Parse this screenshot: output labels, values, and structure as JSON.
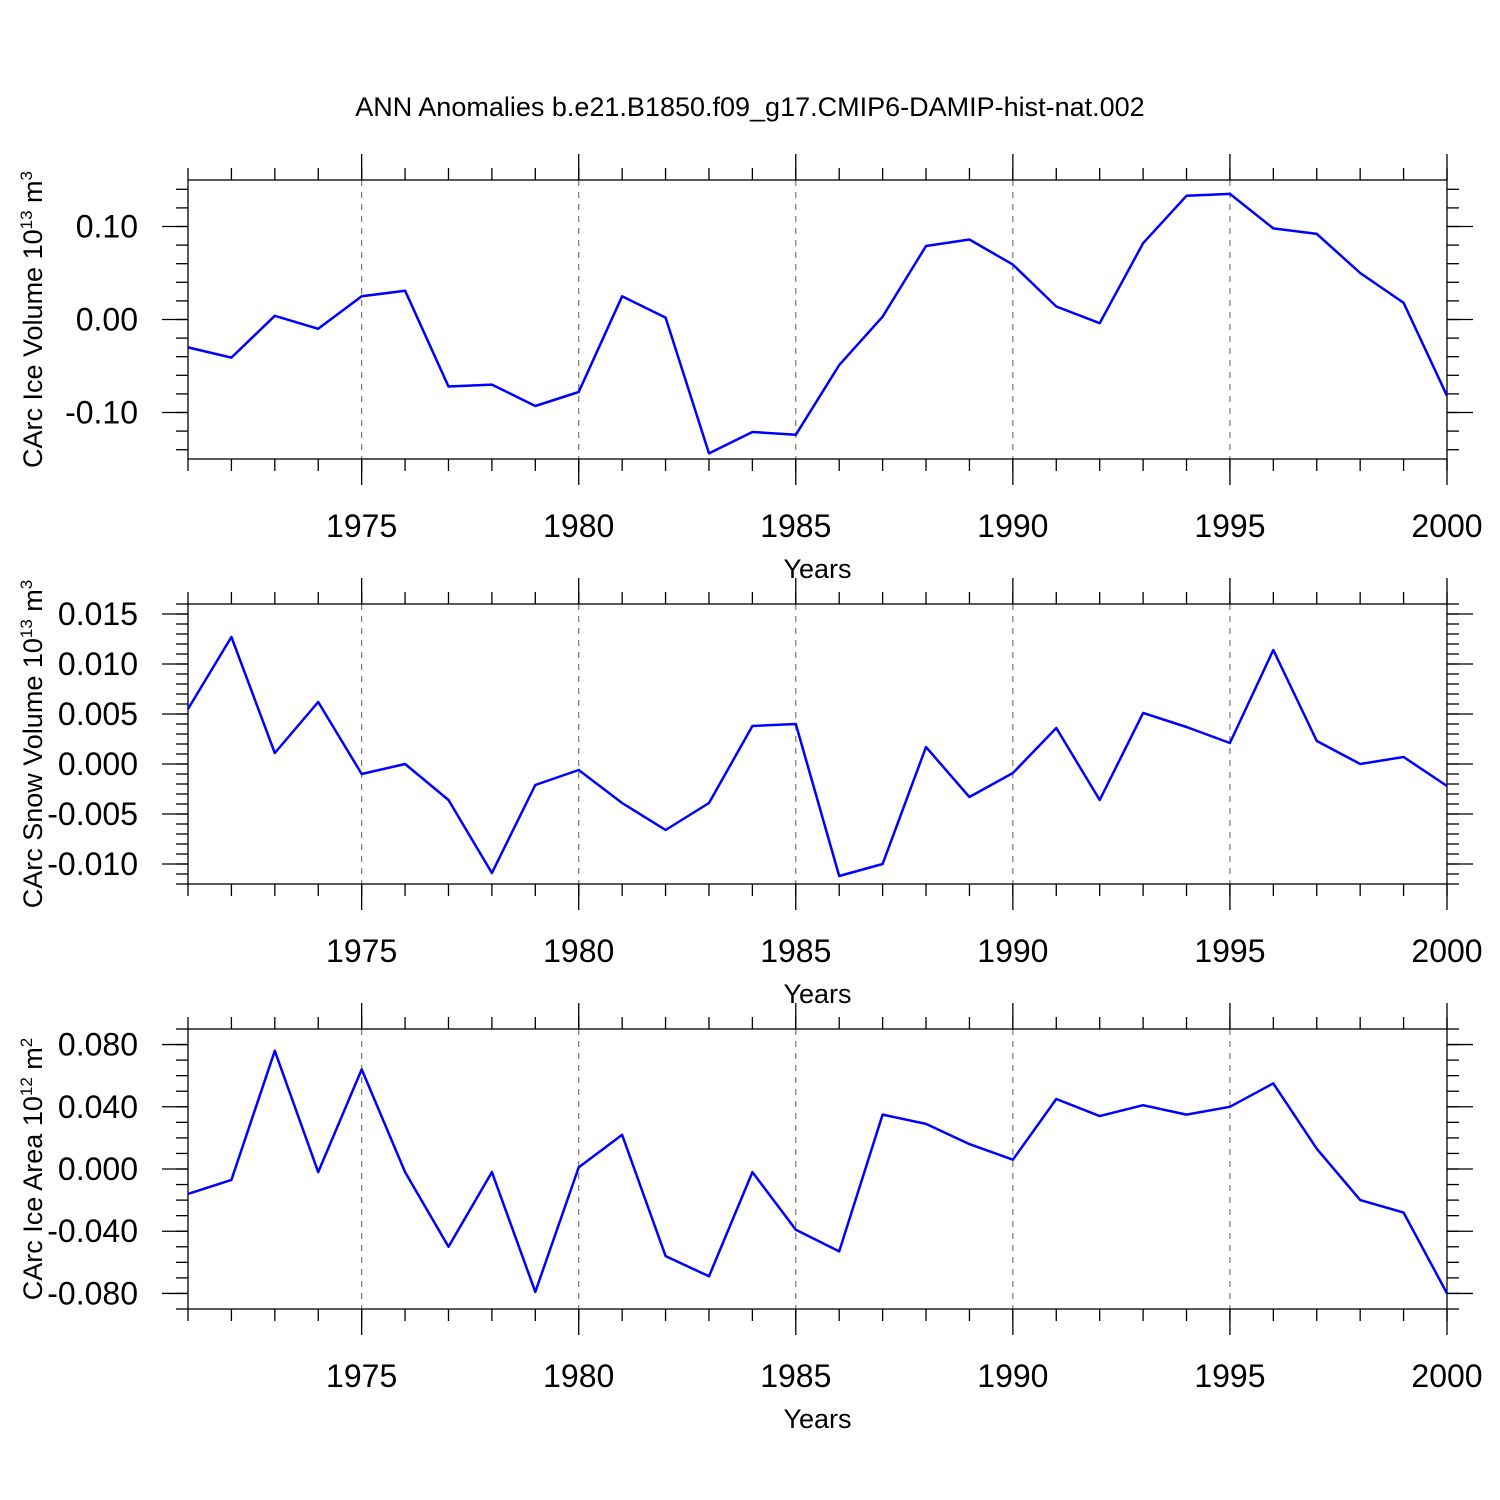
{
  "figure": {
    "title": "ANN Anomalies b.e21.B1850.f09_g17.CMIP6-DAMIP-hist-nat.002"
  },
  "chart_data": [
    {
      "type": "line",
      "title": "ANN Anomalies b.e21.B1850.f09_g17.CMIP6-DAMIP-hist-nat.002",
      "xlabel": "Years",
      "ylabel": "CArc Ice Volume 10^13 m^3",
      "ylabel_parts": [
        "CArc Ice Volume 10",
        "13",
        " m",
        "3"
      ],
      "xlim": [
        1971,
        2000
      ],
      "ylim": [
        -0.15,
        0.15
      ],
      "x_ticks": [
        1975,
        1980,
        1985,
        1990,
        1995,
        2000
      ],
      "y_ticks": [
        -0.1,
        0.0,
        0.1
      ],
      "y_tick_labels": [
        "-0.10",
        "0.00",
        "0.10"
      ],
      "x_minor_step": 1,
      "y_minor_step": 0.02,
      "grid": "vertical dashed at major x ticks",
      "line_color": "#0000ff",
      "x": [
        1971,
        1972,
        1973,
        1974,
        1975,
        1976,
        1977,
        1978,
        1979,
        1980,
        1981,
        1982,
        1983,
        1984,
        1985,
        1986,
        1987,
        1988,
        1989,
        1990,
        1991,
        1992,
        1993,
        1994,
        1995,
        1996,
        1997,
        1998,
        1999,
        2000
      ],
      "values": [
        -0.03,
        -0.041,
        0.004,
        -0.01,
        0.025,
        0.031,
        -0.072,
        -0.07,
        -0.093,
        -0.078,
        0.025,
        0.002,
        -0.144,
        -0.121,
        -0.124,
        -0.049,
        0.003,
        0.079,
        0.086,
        0.059,
        0.014,
        -0.004,
        0.082,
        0.133,
        0.135,
        0.098,
        0.092,
        0.05,
        0.018,
        -0.082
      ]
    },
    {
      "type": "line",
      "xlabel": "Years",
      "ylabel": "CArc Snow Volume 10^13 m^3",
      "ylabel_parts": [
        "CArc Snow Volume 10",
        "13",
        " m",
        "3"
      ],
      "xlim": [
        1971,
        2000
      ],
      "ylim": [
        -0.012,
        0.016
      ],
      "x_ticks": [
        1975,
        1980,
        1985,
        1990,
        1995,
        2000
      ],
      "y_ticks": [
        -0.01,
        -0.005,
        0.0,
        0.005,
        0.01,
        0.015
      ],
      "y_tick_labels": [
        "-0.010",
        "-0.005",
        "0.000",
        "0.005",
        "0.010",
        "0.015"
      ],
      "x_minor_step": 1,
      "y_minor_step": 0.001,
      "grid": "vertical dashed at major x ticks",
      "line_color": "#0000ff",
      "x": [
        1971,
        1972,
        1973,
        1974,
        1975,
        1976,
        1977,
        1978,
        1979,
        1980,
        1981,
        1982,
        1983,
        1984,
        1985,
        1986,
        1987,
        1988,
        1989,
        1990,
        1991,
        1992,
        1993,
        1994,
        1995,
        1996,
        1997,
        1998,
        1999,
        2000
      ],
      "values": [
        0.0055,
        0.0127,
        0.0011,
        0.0062,
        -0.001,
        0.0,
        -0.0036,
        -0.0109,
        -0.0021,
        -0.0006,
        -0.0039,
        -0.0066,
        -0.0039,
        0.0038,
        0.004,
        -0.0112,
        -0.01,
        0.0017,
        -0.0033,
        -0.0009,
        0.0036,
        -0.0036,
        0.0051,
        0.0037,
        0.0021,
        0.0114,
        0.0023,
        0.0,
        0.0007,
        -0.0022
      ]
    },
    {
      "type": "line",
      "xlabel": "Years",
      "ylabel": "CArc Ice Area 10^12 m^2",
      "ylabel_parts": [
        "CArc Ice Area 10",
        "12",
        " m",
        "2"
      ],
      "xlim": [
        1971,
        2000
      ],
      "ylim": [
        -0.09,
        0.09
      ],
      "x_ticks": [
        1975,
        1980,
        1985,
        1990,
        1995,
        2000
      ],
      "y_ticks": [
        -0.08,
        -0.04,
        0.0,
        0.04,
        0.08
      ],
      "y_tick_labels": [
        "-0.080",
        "-0.040",
        "0.000",
        "0.040",
        "0.080"
      ],
      "x_minor_step": 1,
      "y_minor_step": 0.01,
      "grid": "vertical dashed at major x ticks",
      "line_color": "#0000ff",
      "x": [
        1971,
        1972,
        1973,
        1974,
        1975,
        1976,
        1977,
        1978,
        1979,
        1980,
        1981,
        1982,
        1983,
        1984,
        1985,
        1986,
        1987,
        1988,
        1989,
        1990,
        1991,
        1992,
        1993,
        1994,
        1995,
        1996,
        1997,
        1998,
        1999,
        2000
      ],
      "values": [
        -0.016,
        -0.007,
        0.076,
        -0.002,
        0.064,
        -0.002,
        -0.05,
        -0.002,
        -0.079,
        0.001,
        0.022,
        -0.056,
        -0.069,
        -0.002,
        -0.039,
        -0.053,
        0.035,
        0.029,
        0.016,
        0.006,
        0.045,
        0.034,
        0.041,
        0.035,
        0.04,
        0.055,
        0.013,
        -0.02,
        -0.028,
        -0.08
      ]
    }
  ]
}
